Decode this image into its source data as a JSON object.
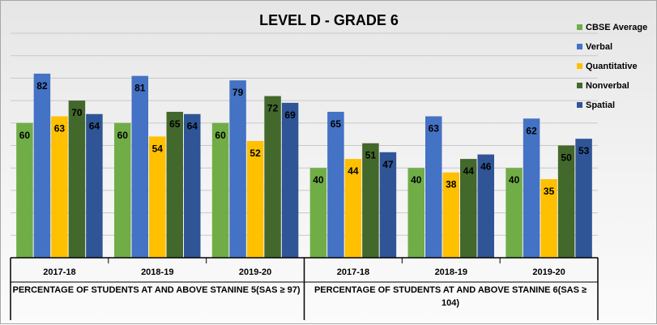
{
  "chart_data": {
    "type": "bar",
    "title": "LEVEL D - GRADE 6",
    "ylim": [
      0,
      100
    ],
    "grid": true,
    "legend_position": "right",
    "groups": [
      {
        "label": "PERCENTAGE OF STUDENTS AT AND ABOVE STANINE 5(SAS ≥ 97)",
        "categories": [
          "2017-18",
          "2018-19",
          "2019-20"
        ]
      },
      {
        "label": "PERCENTAGE OF STUDENTS AT AND ABOVE STANINE 6(SAS ≥ 104)",
        "categories": [
          "2017-18",
          "2018-19",
          "2019-20"
        ]
      }
    ],
    "categories": [
      "2017-18",
      "2018-19",
      "2019-20",
      "2017-18",
      "2018-19",
      "2019-20"
    ],
    "series": [
      {
        "name": "CBSE Average",
        "color": "#70ad47",
        "values": [
          60,
          60,
          60,
          40,
          40,
          40
        ]
      },
      {
        "name": "Verbal",
        "color": "#4472c4",
        "values": [
          82,
          81,
          79,
          65,
          63,
          62
        ]
      },
      {
        "name": "Quantitative",
        "color": "#ffc000",
        "values": [
          63,
          54,
          52,
          44,
          38,
          35
        ]
      },
      {
        "name": "Nonverbal",
        "color": "#43682b",
        "values": [
          70,
          65,
          72,
          51,
          44,
          50
        ]
      },
      {
        "name": "Spatial",
        "color": "#2f5597",
        "values": [
          64,
          64,
          69,
          47,
          46,
          53
        ]
      }
    ]
  }
}
